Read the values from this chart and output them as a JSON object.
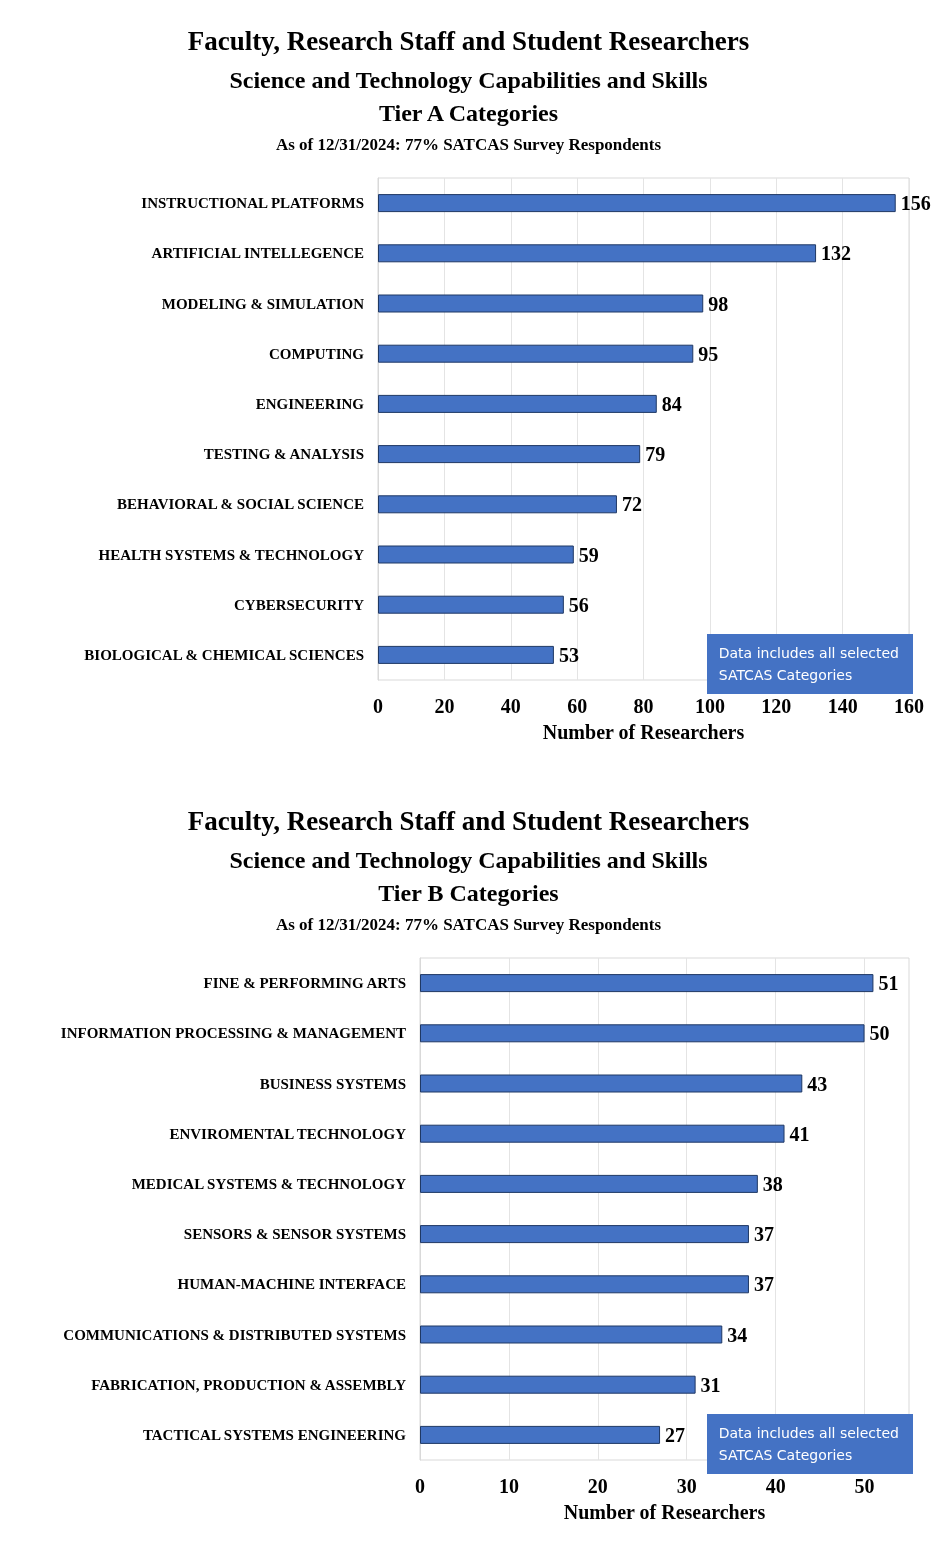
{
  "chart_data": [
    {
      "type": "bar",
      "orientation": "horizontal",
      "title": "Faculty, Research Staff and Student Researchers",
      "subtitle": "Science and Technology Capabilities and Skills\nTier A Categories\nAs of 12/31/2024: 77% SATCAS Survey Respondents",
      "xlabel": "Number of Researchers",
      "categories": [
        "INSTRUCTIONAL PLATFORMS",
        "ARTIFICIAL INTELLEGENCE",
        "MODELING & SIMULATION",
        "COMPUTING",
        "ENGINEERING",
        "TESTING & ANALYSIS",
        "BEHAVIORAL & SOCIAL SCIENCE",
        "HEALTH SYSTEMS & TECHNOLOGY",
        "CYBERSECURITY",
        "BIOLOGICAL & CHEMICAL SCIENCES"
      ],
      "values": [
        156,
        132,
        98,
        95,
        84,
        79,
        72,
        59,
        56,
        53
      ],
      "color": "#4472c4",
      "xlim": [
        0,
        160
      ],
      "xticks": [
        0,
        20,
        40,
        60,
        80,
        100,
        120,
        140,
        160
      ],
      "grid": "x",
      "data_labels": true,
      "annotations": [
        "Data includes all selected\nSATCAS Categories"
      ]
    },
    {
      "type": "bar",
      "orientation": "horizontal",
      "title": "Faculty, Research Staff and Student Researchers",
      "subtitle": "Science and Technology Capabilities and Skills\nTier B Categories\nAs of 12/31/2024: 77% SATCAS Survey Respondents",
      "xlabel": "Number of Researchers",
      "categories": [
        "FINE & PERFORMING ARTS",
        "INFORMATION PROCESSING & MANAGEMENT",
        "BUSINESS SYSTEMS",
        "ENVIROMENTAL TECHNOLOGY",
        "MEDICAL SYSTEMS & TECHNOLOGY",
        "SENSORS & SENSOR SYSTEMS",
        "HUMAN-MACHINE INTERFACE",
        "COMMUNICATIONS & DISTRIBUTED SYSTEMS",
        "FABRICATION, PRODUCTION & ASSEMBLY",
        "TACTICAL SYSTEMS ENGINEERING"
      ],
      "values": [
        51,
        50,
        43,
        41,
        38,
        37,
        37,
        34,
        31,
        27
      ],
      "color": "#4472c4",
      "xlim": [
        0,
        55
      ],
      "xticks": [
        0,
        10,
        20,
        30,
        40,
        50
      ],
      "grid": "x",
      "data_labels": true,
      "annotations": [
        "Data includes all selected\nSATCAS Categories"
      ]
    }
  ]
}
